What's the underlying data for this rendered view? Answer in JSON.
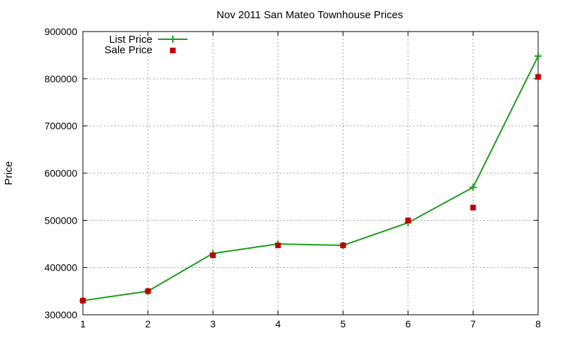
{
  "chart_data": {
    "type": "line",
    "title": "Nov 2011 San Mateo Townhouse Prices",
    "xlabel": "",
    "ylabel": "Price",
    "x": [
      1,
      2,
      3,
      4,
      5,
      6,
      7,
      8
    ],
    "xlim": [
      1,
      8
    ],
    "ylim": [
      300000,
      900000
    ],
    "xticks": [
      "1",
      "2",
      "3",
      "4",
      "5",
      "6",
      "7",
      "8"
    ],
    "yticks": [
      "300000",
      "400000",
      "500000",
      "600000",
      "700000",
      "800000",
      "900000"
    ],
    "grid": true,
    "legend_position": "top-left",
    "series": [
      {
        "name": "List Price",
        "style": "line with plus markers",
        "color": "#1a9c1a",
        "values": [
          330000,
          350000,
          430000,
          450000,
          447000,
          495000,
          570000,
          848000
        ]
      },
      {
        "name": "Sale Price",
        "style": "square markers",
        "color": "#c00000",
        "values": [
          330000,
          350000,
          426000,
          447000,
          447000,
          500000,
          527000,
          804000
        ]
      }
    ]
  }
}
